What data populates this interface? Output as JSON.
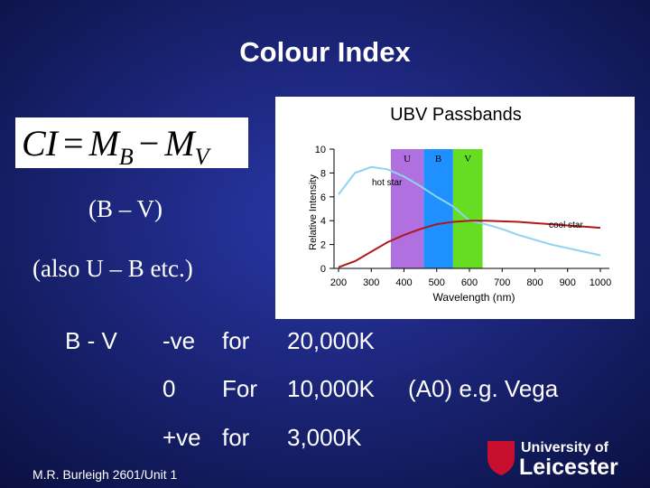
{
  "slide": {
    "title": "Colour Index",
    "formula": [
      "CI",
      "=",
      "M",
      "B",
      "−",
      "M",
      "V"
    ],
    "line1": "(B – V)",
    "line2": "(also U – B etc.)",
    "table": {
      "label": "B - V",
      "rows": [
        [
          "-ve",
          "for",
          "20,000K"
        ],
        [
          "0",
          "For",
          "10,000K",
          "(A0) e.g. Vega"
        ],
        [
          "+ve",
          "for",
          "3,000K"
        ]
      ]
    },
    "footer": "M.R. Burleigh 2601/Unit 1",
    "logo": [
      "University of",
      "Leicester"
    ]
  },
  "chart_data": {
    "type": "line",
    "title": "UBV Passbands",
    "x_label": "Wavelength (nm)",
    "y_label": "Relative Intensity",
    "x": [
      200,
      250,
      300,
      350,
      400,
      450,
      500,
      550,
      600,
      650,
      700,
      750,
      800,
      850,
      900,
      950,
      1000
    ],
    "series": [
      {
        "name": "hot star",
        "color": "#8fd3f0",
        "values": [
          6.2,
          8.0,
          8.5,
          8.3,
          7.7,
          6.9,
          6.0,
          5.2,
          4.0,
          3.7,
          3.3,
          2.8,
          2.4,
          2.0,
          1.7,
          1.4,
          1.1
        ]
      },
      {
        "name": "cool star",
        "color": "#b01818",
        "values": [
          0.1,
          0.6,
          1.4,
          2.2,
          2.8,
          3.3,
          3.7,
          3.9,
          4.0,
          4.0,
          3.95,
          3.9,
          3.8,
          3.7,
          3.6,
          3.5,
          3.4
        ]
      }
    ],
    "bands": [
      {
        "name": "U",
        "range": [
          360,
          460
        ],
        "color": "#b070e0"
      },
      {
        "name": "B",
        "range": [
          460,
          550
        ],
        "color": "#1e90ff"
      },
      {
        "name": "V",
        "range": [
          550,
          640
        ],
        "color": "#66dd22"
      }
    ],
    "xlim": [
      200,
      1000
    ],
    "ylim": [
      0,
      10
    ],
    "xticks": [
      200,
      300,
      400,
      500,
      600,
      700,
      800,
      900,
      1000
    ],
    "yticks": [
      0,
      2,
      4,
      6,
      8,
      10
    ]
  }
}
